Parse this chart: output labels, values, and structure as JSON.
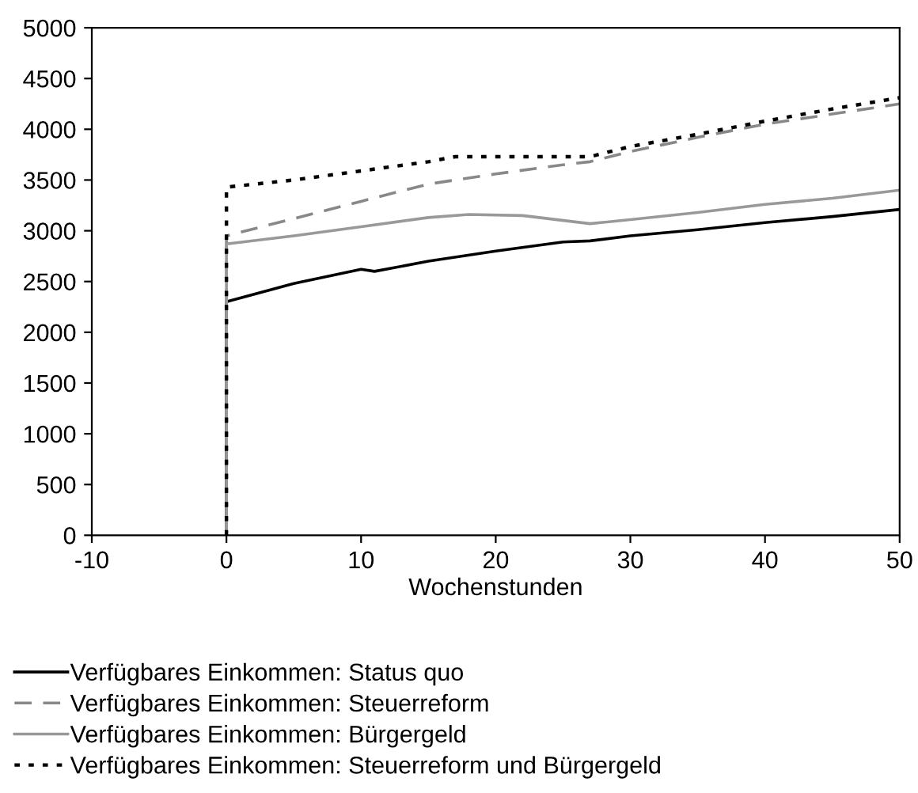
{
  "chart_data": {
    "type": "line",
    "xlabel": "Wochenstunden",
    "xlim": [
      -10,
      50
    ],
    "xticks": [
      -10,
      0,
      10,
      20,
      30,
      40,
      50
    ],
    "ylim": [
      0,
      5000
    ],
    "yticks": [
      0,
      500,
      1000,
      1500,
      2000,
      2500,
      3000,
      3500,
      4000,
      4500,
      5000
    ],
    "grid": false,
    "legend": "bottom",
    "marker": "none",
    "series": [
      {
        "name": "Verfügbares Einkommen: Status quo",
        "color": "#000000",
        "line_style": "solid",
        "x": [
          0,
          0,
          5,
          10,
          11,
          15,
          20,
          25,
          27,
          30,
          35,
          40,
          45,
          50
        ],
        "values": [
          0,
          2300,
          2480,
          2620,
          2600,
          2700,
          2800,
          2890,
          2900,
          2950,
          3010,
          3080,
          3140,
          3210
        ]
      },
      {
        "name": "Verfügbares Einkommen: Steuerreform",
        "color": "#888888",
        "line_style": "dashed",
        "x": [
          0,
          0,
          5,
          10,
          15,
          20,
          25,
          27,
          30,
          35,
          40,
          45,
          50
        ],
        "values": [
          0,
          2950,
          3120,
          3290,
          3460,
          3560,
          3650,
          3680,
          3780,
          3920,
          4050,
          4150,
          4250
        ]
      },
      {
        "name": "Verfügbares Einkommen: Bürgergeld",
        "color": "#999999",
        "line_style": "solid",
        "x": [
          0,
          0,
          5,
          10,
          15,
          18,
          22,
          27,
          30,
          35,
          40,
          45,
          50
        ],
        "values": [
          0,
          2870,
          2950,
          3040,
          3130,
          3160,
          3150,
          3070,
          3110,
          3180,
          3260,
          3320,
          3400
        ]
      },
      {
        "name": "Verfügbares Einkommen: Steuerreform und Bürgergeld",
        "color": "#000000",
        "line_style": "dotted",
        "x": [
          0,
          0,
          5,
          10,
          15,
          17,
          27,
          30,
          35,
          40,
          45,
          50
        ],
        "values": [
          0,
          3430,
          3500,
          3590,
          3680,
          3730,
          3730,
          3830,
          3950,
          4080,
          4200,
          4310
        ]
      }
    ]
  }
}
